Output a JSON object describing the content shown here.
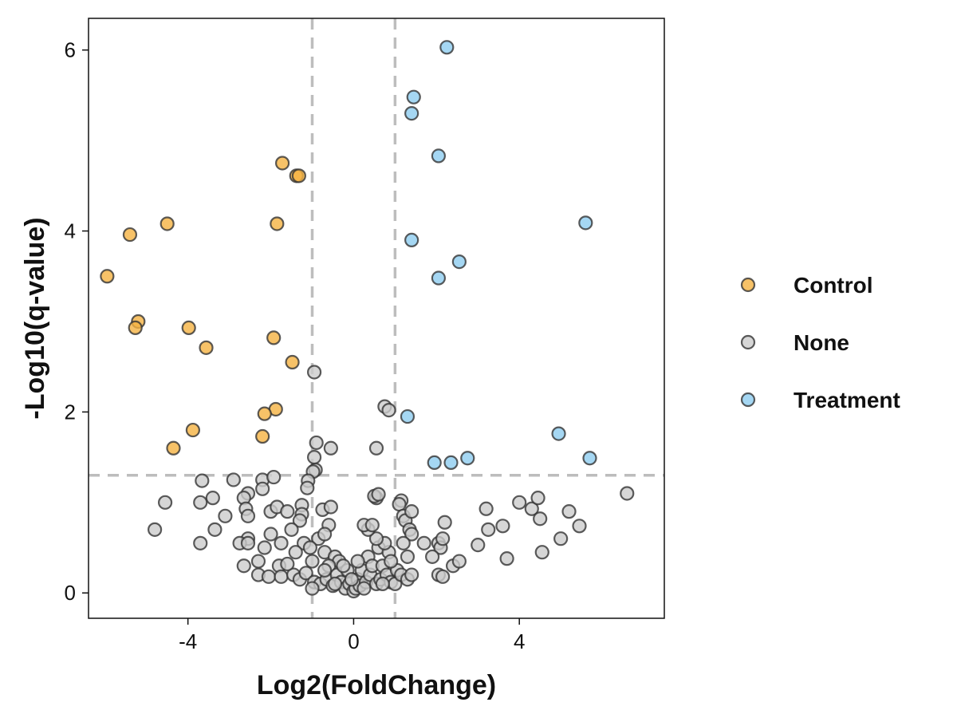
{
  "chart_data": {
    "type": "scatter",
    "title": "",
    "xlabel": "Log2(FoldChange)",
    "ylabel": "-Log10(q-value)",
    "xlim": [
      -6.4,
      7.5
    ],
    "ylim": [
      -0.28,
      6.35
    ],
    "xticks": [
      -4,
      0,
      4
    ],
    "xtick_labels": [
      "-4",
      "0",
      "4"
    ],
    "yticks": [
      0,
      2,
      4,
      6
    ],
    "ytick_labels": [
      "0",
      "2",
      "4",
      "6"
    ],
    "threshold_lines": {
      "x": [
        -1,
        1
      ],
      "y": 1.3,
      "color": "#bdbdbd",
      "style": "dashed"
    },
    "grid": false,
    "legend_position": "right",
    "series": [
      {
        "name": "Control",
        "color": "#f5b342",
        "points": [
          [
            -5.95,
            3.5
          ],
          [
            -5.4,
            3.96
          ],
          [
            -4.5,
            4.08
          ],
          [
            -5.2,
            3.0
          ],
          [
            -5.27,
            2.93
          ],
          [
            -3.98,
            2.93
          ],
          [
            -3.56,
            2.71
          ],
          [
            -1.72,
            4.75
          ],
          [
            -1.38,
            4.61
          ],
          [
            -1.32,
            4.61
          ],
          [
            -1.85,
            4.08
          ],
          [
            -1.93,
            2.82
          ],
          [
            -1.48,
            2.55
          ],
          [
            -1.88,
            2.03
          ],
          [
            -2.15,
            1.98
          ],
          [
            -2.2,
            1.73
          ],
          [
            -3.88,
            1.8
          ],
          [
            -4.35,
            1.6
          ]
        ]
      },
      {
        "name": "None",
        "color": "#cccccc",
        "points": [
          [
            -0.95,
            2.44
          ],
          [
            -0.9,
            1.66
          ],
          [
            -0.55,
            1.6
          ],
          [
            -0.95,
            1.5
          ],
          [
            -0.92,
            1.36
          ],
          [
            -0.98,
            1.34
          ],
          [
            -1.1,
            1.24
          ],
          [
            -1.12,
            1.16
          ],
          [
            -2.2,
            1.25
          ],
          [
            -1.93,
            1.28
          ],
          [
            -2.2,
            1.15
          ],
          [
            -2.9,
            1.25
          ],
          [
            -3.66,
            1.24
          ],
          [
            -3.4,
            1.05
          ],
          [
            -2.55,
            1.1
          ],
          [
            -2.65,
            1.05
          ],
          [
            -2.6,
            0.93
          ],
          [
            -3.7,
            1.0
          ],
          [
            -4.55,
            1.0
          ],
          [
            -4.8,
            0.7
          ],
          [
            -3.35,
            0.7
          ],
          [
            -3.1,
            0.85
          ],
          [
            -2.55,
            0.85
          ],
          [
            -2.0,
            0.9
          ],
          [
            -1.85,
            0.95
          ],
          [
            -1.6,
            0.9
          ],
          [
            -1.25,
            0.97
          ],
          [
            -1.25,
            0.87
          ],
          [
            -0.75,
            0.92
          ],
          [
            -0.55,
            0.95
          ],
          [
            -0.85,
            0.6
          ],
          [
            -0.6,
            0.75
          ],
          [
            -0.7,
            0.65
          ],
          [
            -1.3,
            0.8
          ],
          [
            -1.5,
            0.7
          ],
          [
            -2.0,
            0.65
          ],
          [
            -2.55,
            0.6
          ],
          [
            -2.75,
            0.55
          ],
          [
            -2.55,
            0.55
          ],
          [
            -3.7,
            0.55
          ],
          [
            -2.15,
            0.5
          ],
          [
            -2.3,
            0.35
          ],
          [
            -1.75,
            0.55
          ],
          [
            -1.2,
            0.55
          ],
          [
            -1.05,
            0.5
          ],
          [
            -0.7,
            0.45
          ],
          [
            -0.45,
            0.4
          ],
          [
            -0.35,
            0.35
          ],
          [
            -0.6,
            0.3
          ],
          [
            -1.4,
            0.45
          ],
          [
            -1.0,
            0.35
          ],
          [
            -1.8,
            0.3
          ],
          [
            -2.65,
            0.3
          ],
          [
            -2.3,
            0.2
          ],
          [
            -2.05,
            0.18
          ],
          [
            -1.75,
            0.18
          ],
          [
            -1.45,
            0.2
          ],
          [
            -1.3,
            0.15
          ],
          [
            -1.15,
            0.22
          ],
          [
            -0.95,
            0.12
          ],
          [
            -0.8,
            0.1
          ],
          [
            -0.65,
            0.15
          ],
          [
            -0.5,
            0.08
          ],
          [
            -0.4,
            0.2
          ],
          [
            -0.3,
            0.12
          ],
          [
            -0.2,
            0.05
          ],
          [
            -0.15,
            0.25
          ],
          [
            -0.1,
            0.1
          ],
          [
            0.0,
            0.02
          ],
          [
            0.05,
            0.05
          ],
          [
            0.1,
            0.15
          ],
          [
            0.15,
            0.08
          ],
          [
            0.2,
            0.25
          ],
          [
            0.3,
            0.12
          ],
          [
            0.35,
            0.4
          ],
          [
            0.4,
            0.2
          ],
          [
            0.45,
            0.3
          ],
          [
            0.55,
            0.1
          ],
          [
            0.6,
            0.5
          ],
          [
            0.65,
            0.15
          ],
          [
            0.7,
            0.3
          ],
          [
            0.8,
            0.2
          ],
          [
            0.9,
            0.12
          ],
          [
            1.0,
            0.1
          ],
          [
            1.05,
            0.25
          ],
          [
            1.15,
            0.2
          ],
          [
            1.3,
            0.15
          ],
          [
            1.4,
            0.2
          ],
          [
            0.85,
            0.45
          ],
          [
            0.75,
            0.55
          ],
          [
            0.55,
            0.6
          ],
          [
            0.35,
            0.7
          ],
          [
            0.25,
            0.75
          ],
          [
            0.45,
            0.75
          ],
          [
            0.55,
            1.05
          ],
          [
            0.5,
            1.07
          ],
          [
            0.6,
            1.09
          ],
          [
            1.15,
            1.02
          ],
          [
            1.1,
            0.98
          ],
          [
            1.2,
            0.85
          ],
          [
            1.25,
            0.8
          ],
          [
            1.35,
            0.7
          ],
          [
            1.4,
            0.65
          ],
          [
            1.2,
            0.55
          ],
          [
            1.4,
            0.9
          ],
          [
            1.7,
            0.55
          ],
          [
            2.05,
            0.55
          ],
          [
            2.1,
            0.5
          ],
          [
            1.9,
            0.4
          ],
          [
            2.15,
            0.6
          ],
          [
            2.2,
            0.78
          ],
          [
            2.4,
            0.3
          ],
          [
            2.55,
            0.35
          ],
          [
            2.05,
            0.2
          ],
          [
            2.15,
            0.18
          ],
          [
            1.3,
            0.4
          ],
          [
            3.0,
            0.53
          ],
          [
            3.25,
            0.7
          ],
          [
            3.2,
            0.93
          ],
          [
            3.6,
            0.74
          ],
          [
            3.7,
            0.38
          ],
          [
            4.0,
            1.0
          ],
          [
            4.3,
            0.93
          ],
          [
            4.45,
            1.05
          ],
          [
            4.5,
            0.82
          ],
          [
            4.55,
            0.45
          ],
          [
            5.0,
            0.6
          ],
          [
            5.2,
            0.9
          ],
          [
            5.45,
            0.74
          ],
          [
            6.6,
            1.1
          ],
          [
            0.55,
            1.6
          ],
          [
            0.75,
            2.06
          ],
          [
            0.85,
            2.02
          ],
          [
            -1.6,
            0.32
          ],
          [
            -1.0,
            0.05
          ],
          [
            0.1,
            0.35
          ],
          [
            -0.25,
            0.3
          ],
          [
            -0.05,
            0.15
          ],
          [
            0.25,
            0.05
          ],
          [
            -0.45,
            0.1
          ],
          [
            0.7,
            0.1
          ],
          [
            -0.7,
            0.25
          ],
          [
            0.9,
            0.35
          ]
        ]
      },
      {
        "name": "Treatment",
        "color": "#8ecdf0",
        "points": [
          [
            2.25,
            6.03
          ],
          [
            1.45,
            5.48
          ],
          [
            1.4,
            5.3
          ],
          [
            2.05,
            4.83
          ],
          [
            5.6,
            4.09
          ],
          [
            1.4,
            3.9
          ],
          [
            2.55,
            3.66
          ],
          [
            2.05,
            3.48
          ],
          [
            1.3,
            1.95
          ],
          [
            4.95,
            1.76
          ],
          [
            5.7,
            1.49
          ],
          [
            2.75,
            1.49
          ],
          [
            2.35,
            1.44
          ],
          [
            1.95,
            1.44
          ]
        ]
      }
    ]
  }
}
